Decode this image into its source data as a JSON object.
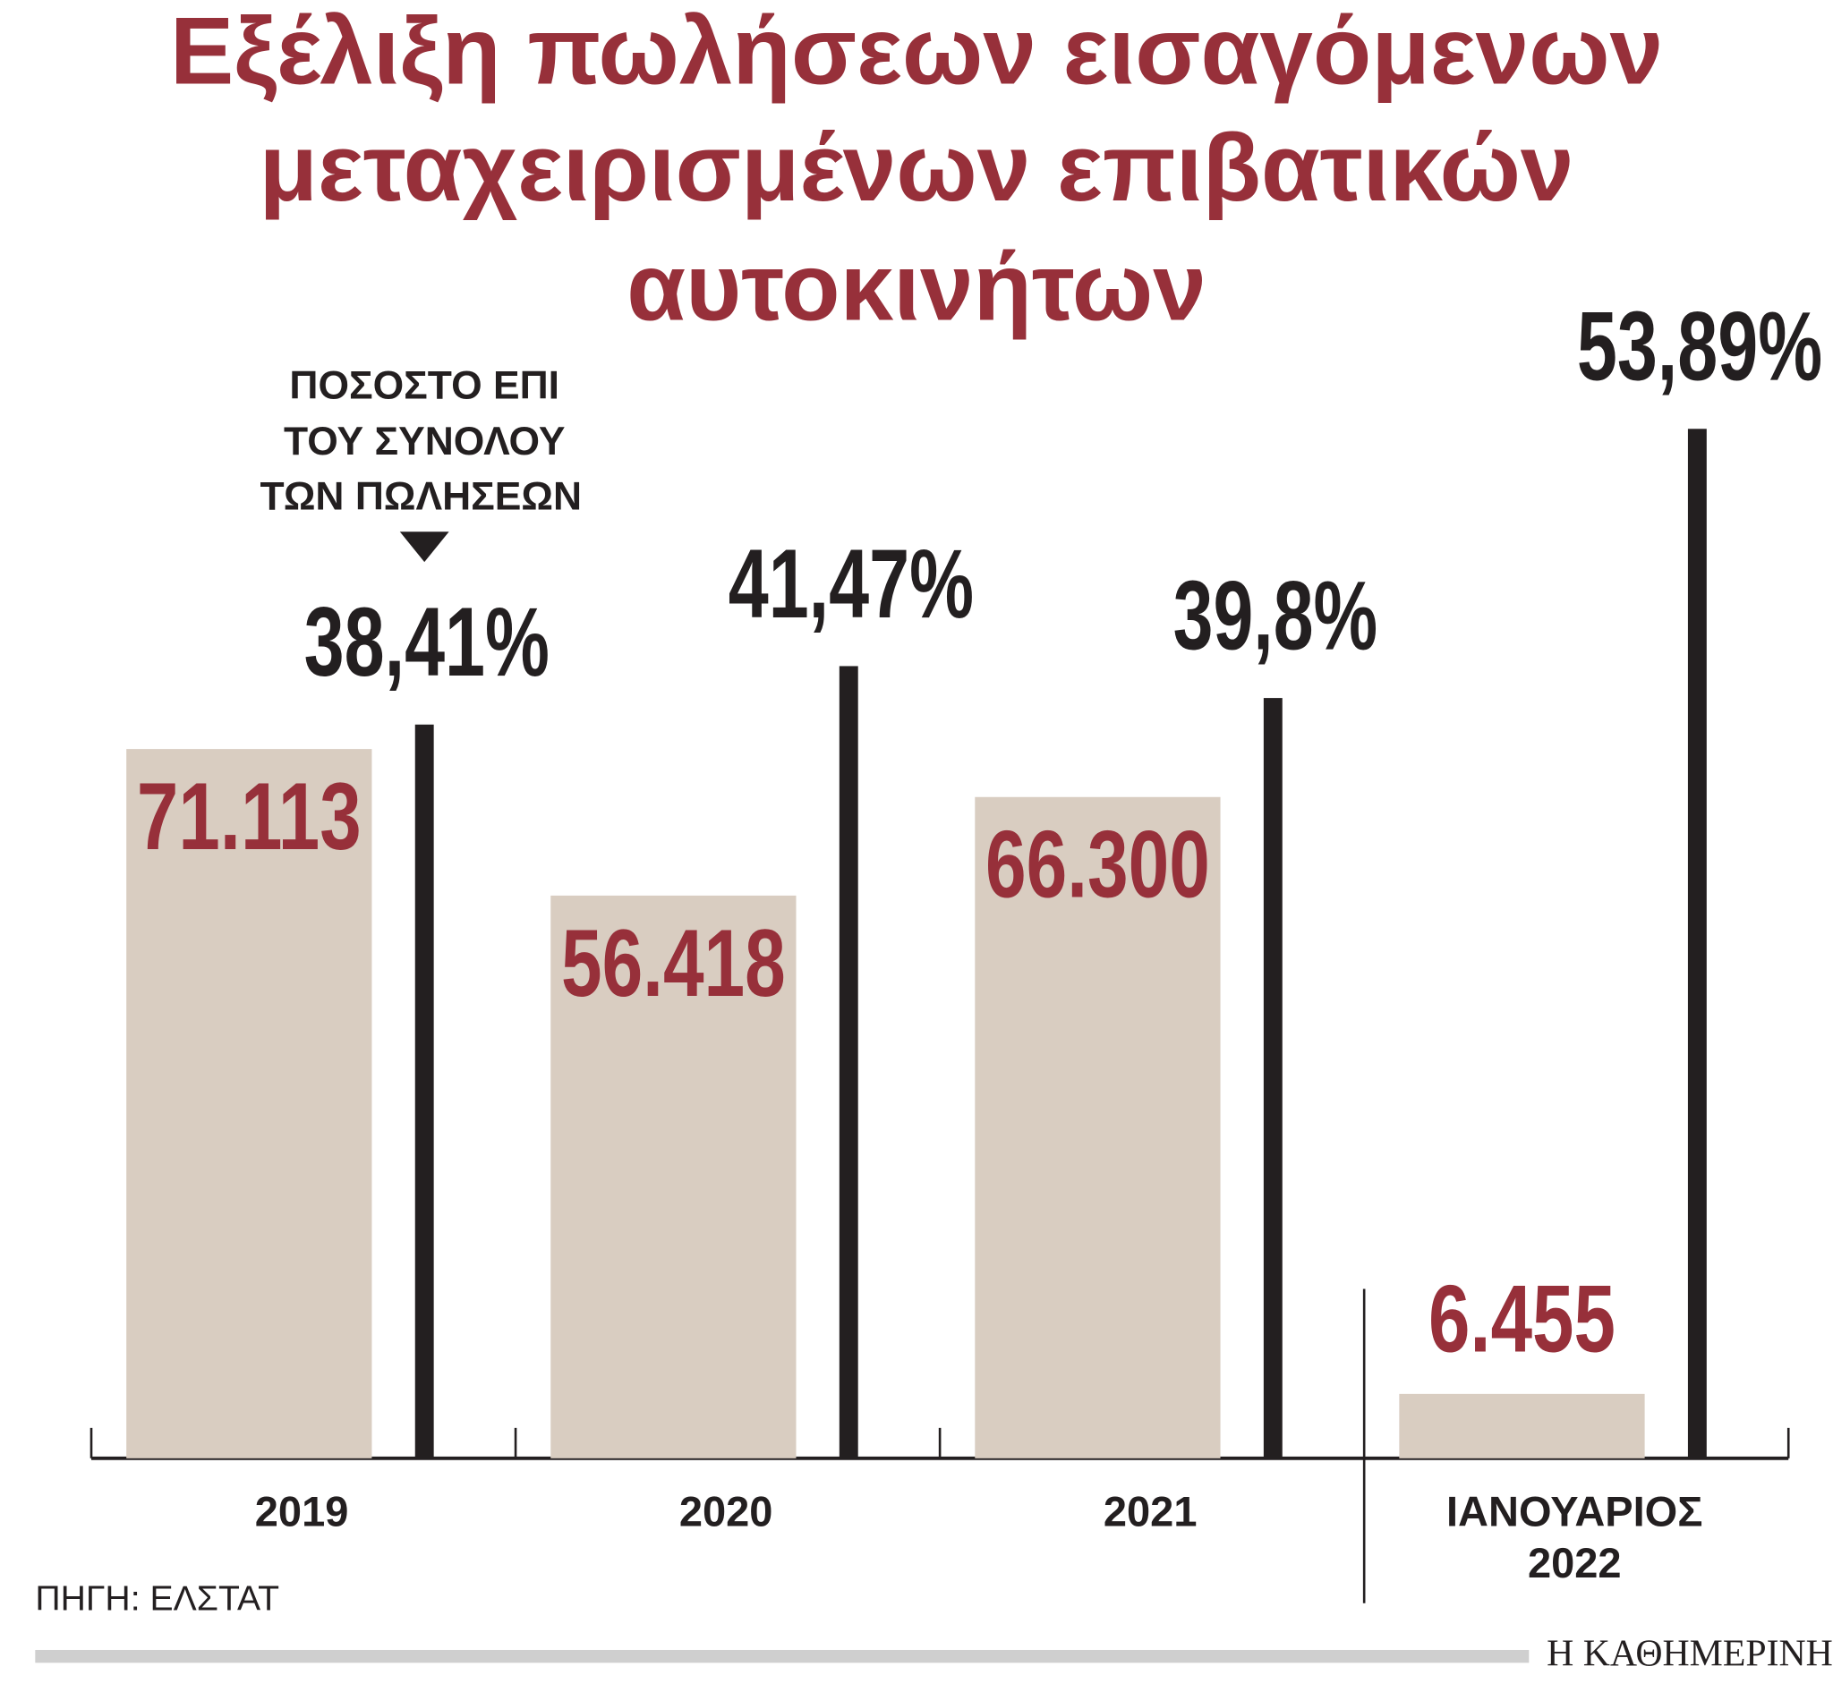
{
  "chart_data": {
    "type": "bar",
    "title": [
      "Εξέλιξη πωλήσεων εισαγόμενων",
      "μεταχειρισμένων επιβατικών",
      "αυτοκινήτων"
    ],
    "annotation": [
      "ΠΟΣΟΣΤΟ ΕΠΙ",
      "ΤΟΥ ΣΥΝΟΛΟΥ",
      "ΤΩΝ ΠΩΛΗΣΕΩΝ"
    ],
    "categories": [
      "2019",
      "2020",
      "2021",
      "ΙΑΝΟΥΑΡΙΟΣ 2022"
    ],
    "series": [
      {
        "color": "#d9cdc1",
        "label_color": "#97303a",
        "values": [
          71113,
          56418,
          66300,
          6455
        ],
        "value_labels": [
          "71.113",
          "56.418",
          "66.300",
          "6.455"
        ]
      },
      {
        "color": "#231f20",
        "label_color": "#231f20",
        "values": [
          38.41,
          41.47,
          39.8,
          53.89
        ],
        "value_labels": [
          "38,41%",
          "41,47%",
          "39,8%",
          "53,89%"
        ]
      }
    ],
    "source": "ΠΗΓΗ: ΕΛΣΤΑΤ",
    "brand": "Η ΚΑΘΗΜΕΡΙΝΗ"
  }
}
